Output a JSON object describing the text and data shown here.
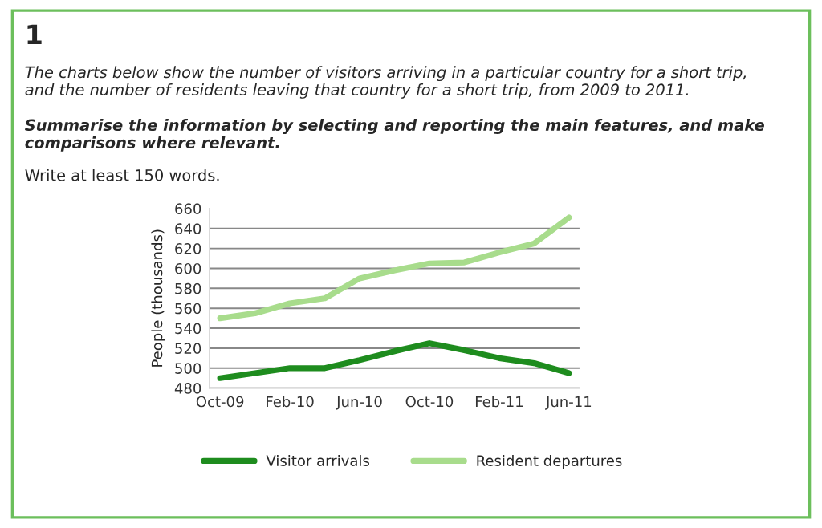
{
  "chart_data": {
    "type": "line",
    "title": "1",
    "annotations": [
      "The charts below show the number of visitors arriving in a particular country for a short trip, and the number of residents leaving that country for a short trip, from 2009 to 2011.",
      "Summarise the information by selecting and reporting the main features, and make comparisons where relevant.",
      "Write at least 150 words."
    ],
    "ylabel": "People (thousands)",
    "categories": [
      "Oct-09",
      null,
      "Feb-10",
      null,
      "Jun-10",
      null,
      "Oct-10",
      null,
      "Feb-11",
      null,
      "Jun-11"
    ],
    "series": [
      {
        "name": "Visitor arrivals",
        "color": "#1e8c1e",
        "values": [
          490,
          495,
          500,
          500,
          508,
          517,
          525,
          518,
          510,
          505,
          495
        ]
      },
      {
        "name": "Resident departures",
        "color": "#a8dc8c",
        "values": [
          550,
          555,
          565,
          570,
          590,
          598,
          605,
          606,
          616,
          625,
          651
        ]
      }
    ],
    "ylim": [
      480,
      660
    ],
    "yticks": [
      480,
      500,
      520,
      540,
      560,
      580,
      600,
      620,
      640,
      660
    ],
    "grid": "y",
    "legend": "bottom",
    "marker": "none",
    "line_style": "solid"
  }
}
